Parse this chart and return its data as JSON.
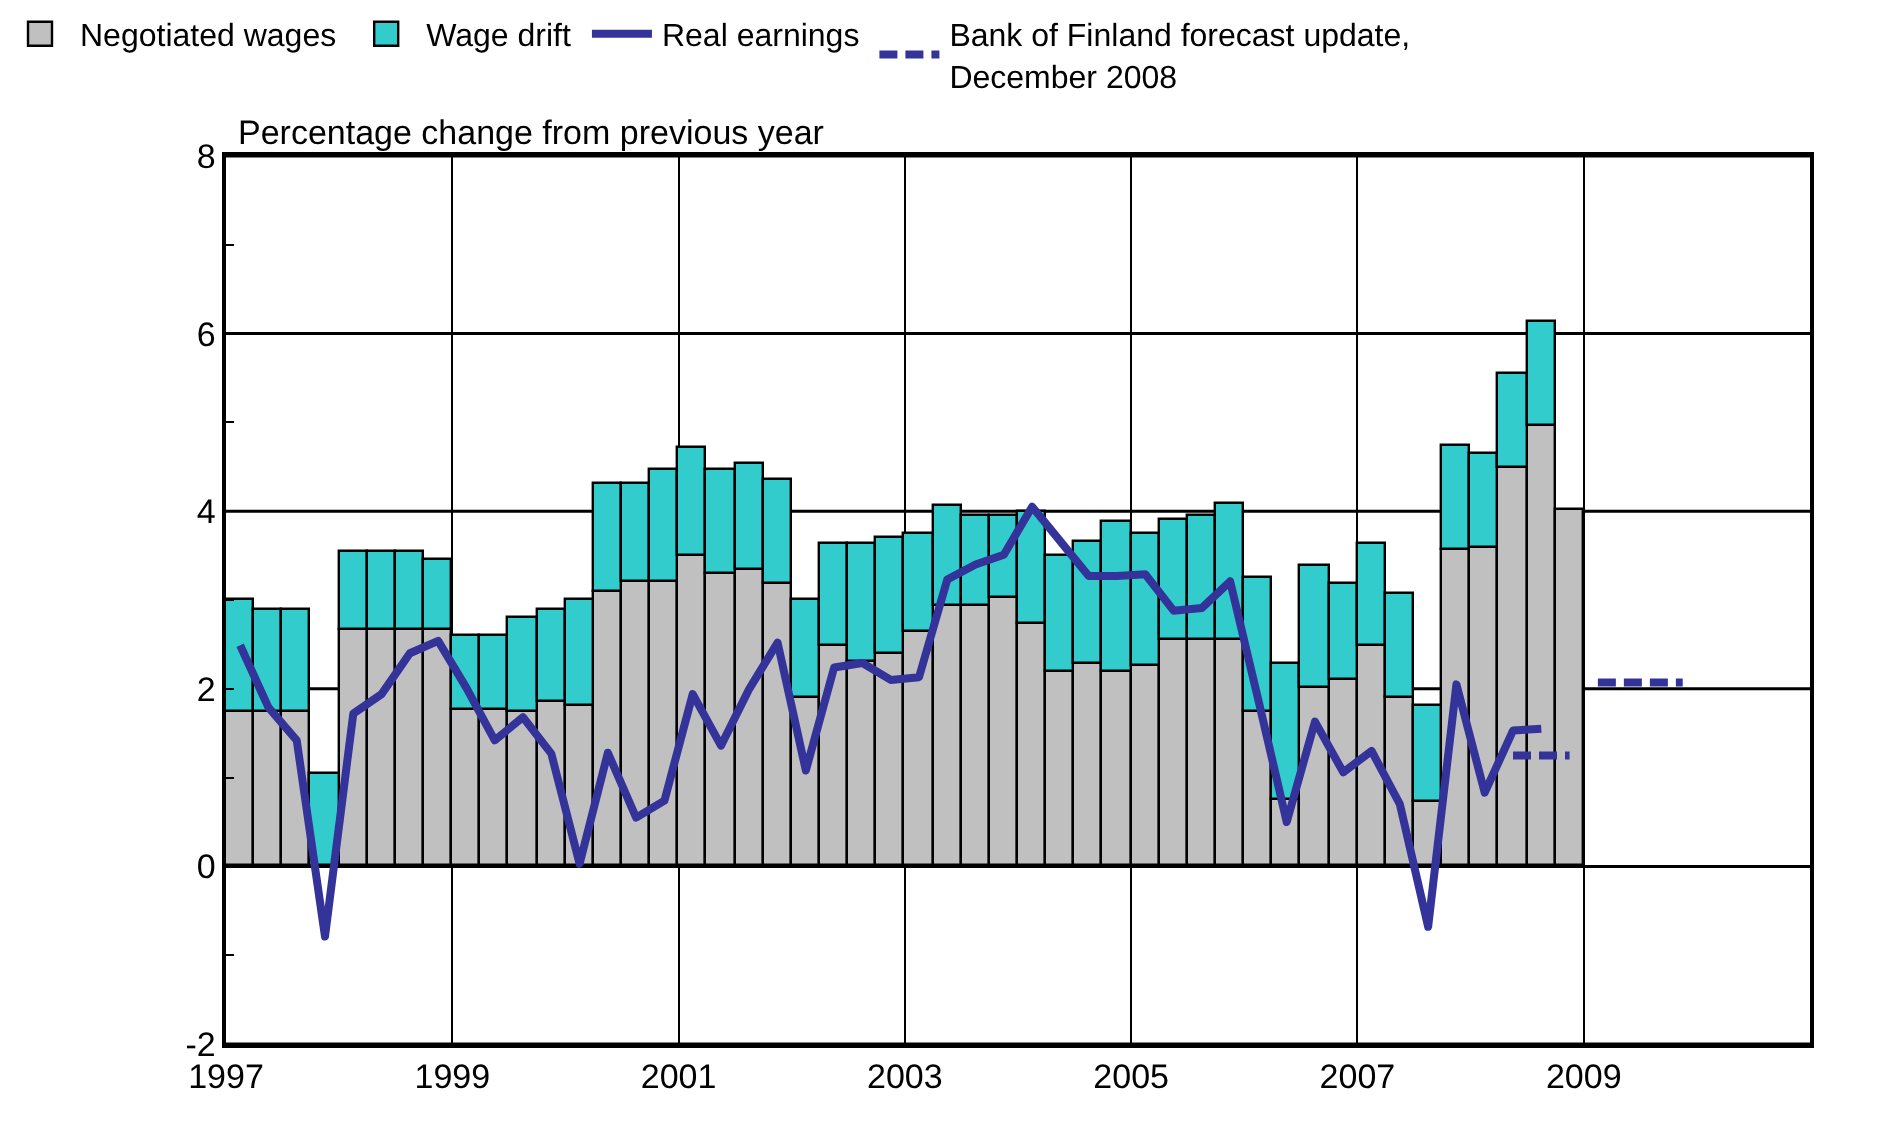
{
  "chart_data": {
    "type": "bar",
    "stacked": true,
    "ylabel": "Percentage change from previous year",
    "x": [
      1997.125,
      1997.375,
      1997.625,
      1997.875,
      1998.125,
      1998.375,
      1998.625,
      1998.875,
      1999.125,
      1999.375,
      1999.625,
      1999.875,
      2000.125,
      2000.375,
      2000.625,
      2000.875,
      2001.125,
      2001.375,
      2001.625,
      2001.875,
      2002.125,
      2002.375,
      2002.625,
      2002.875,
      2003.125,
      2003.375,
      2003.625,
      2003.875,
      2004.125,
      2004.375,
      2004.625,
      2004.875,
      2005.125,
      2005.375,
      2005.625,
      2005.875,
      2006.125,
      2006.375,
      2006.625,
      2006.875,
      2007.125,
      2007.375,
      2007.625,
      2007.875,
      2008.125,
      2008.375,
      2008.625,
      2008.875
    ],
    "series": [
      {
        "name": "Negotiated wages",
        "color": "#c0c0c0",
        "values": [
          1.74,
          1.74,
          1.74,
          null,
          2.67,
          2.67,
          2.67,
          2.67,
          1.77,
          1.77,
          1.75,
          1.85,
          1.81,
          3.1,
          3.2,
          3.2,
          3.5,
          3.29,
          3.34,
          3.19,
          1.9,
          2.48,
          2.31,
          2.39,
          2.64,
          2.93,
          2.93,
          3.02,
          2.72,
          2.19,
          2.28,
          2.19,
          2.25,
          2.56,
          2.56,
          2.56,
          1.73,
          0.75,
          2.01,
          2.1,
          2.49,
          1.9,
          0.73,
          3.57,
          3.59,
          4.49,
          4.97,
          4.02
        ]
      },
      {
        "name": "Wage drift",
        "color": "#33cccc",
        "values": [
          1.25,
          1.14,
          1.14,
          1.04,
          0.88,
          0.88,
          0.88,
          0.77,
          0.83,
          0.83,
          1.04,
          1.03,
          1.18,
          1.2,
          1.1,
          1.26,
          1.21,
          1.17,
          1.2,
          1.16,
          1.11,
          1.16,
          1.31,
          1.3,
          1.1,
          1.12,
          1.02,
          0.93,
          1.28,
          1.31,
          1.38,
          1.68,
          1.5,
          1.34,
          1.39,
          1.53,
          1.52,
          1.54,
          1.38,
          1.08,
          1.15,
          1.16,
          1.08,
          1.16,
          1.05,
          1.05,
          1.15,
          null
        ]
      },
      {
        "name": "Real earnings",
        "type": "line",
        "color": "#333399",
        "line_style": "solid",
        "values": [
          2.49,
          1.79,
          1.42,
          -0.79,
          1.72,
          1.94,
          2.4,
          2.54,
          2.01,
          1.42,
          1.68,
          1.27,
          0.03,
          1.28,
          0.55,
          0.74,
          1.94,
          1.36,
          2.0,
          2.52,
          1.08,
          2.24,
          2.29,
          2.1,
          2.13,
          3.23,
          3.4,
          3.51,
          4.05,
          3.66,
          3.27,
          3.27,
          3.29,
          2.88,
          2.91,
          3.21,
          1.87,
          0.5,
          1.63,
          1.06,
          1.3,
          0.7,
          -0.68,
          2.05,
          0.83,
          1.53,
          1.55,
          null
        ]
      },
      {
        "name": "Bank of Finland forecast update,\nDecember 2008",
        "type": "line",
        "color": "#333399",
        "line_style": "dashed",
        "x": [
          2008.375,
          2008.625,
          2008.875,
          2009.0,
          2009.125,
          2009.375,
          2009.625,
          2009.875
        ],
        "values": [
          1.25,
          1.25,
          1.25,
          null,
          2.07,
          2.07,
          2.07,
          2.07
        ]
      }
    ],
    "xlim": [
      1997,
      2011
    ],
    "xticks": [
      1997,
      1999,
      2001,
      2003,
      2005,
      2007,
      2009
    ],
    "ylim": [
      -2,
      8
    ],
    "yticks": [
      -2,
      {
        "value": -1,
        "label": null
      },
      0,
      {
        "value": 1,
        "label": null
      },
      2,
      {
        "value": 3,
        "label": null
      },
      4,
      {
        "value": 5,
        "label": null
      },
      6,
      {
        "value": 7,
        "label": null
      },
      8
    ],
    "grid": true,
    "legend": "top",
    "marker": "none"
  }
}
